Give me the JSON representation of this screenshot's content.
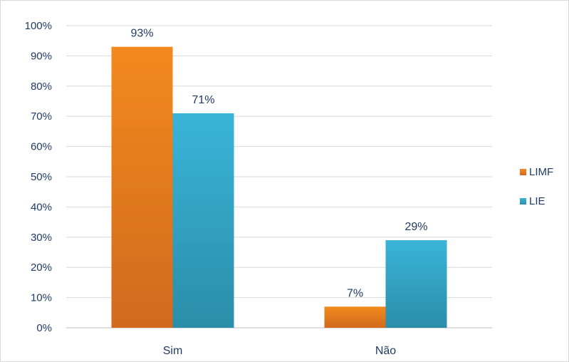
{
  "chart_data": {
    "type": "bar",
    "categories": [
      "Sim",
      "Não"
    ],
    "series": [
      {
        "name": "LIMF",
        "values": [
          93,
          7
        ],
        "labels": [
          "93%",
          "7%"
        ],
        "color": "#f28a1e",
        "color_dark": "#d2691e"
      },
      {
        "name": "LIE",
        "values": [
          71,
          29
        ],
        "labels": [
          "71%",
          "29%"
        ],
        "color": "#3ab4d8",
        "color_dark": "#2a8ea8"
      }
    ],
    "y_ticks": [
      "0%",
      "10%",
      "20%",
      "30%",
      "40%",
      "50%",
      "60%",
      "70%",
      "80%",
      "90%",
      "100%"
    ],
    "ylim": [
      0,
      100
    ],
    "grid": true,
    "legend_position": "right"
  }
}
